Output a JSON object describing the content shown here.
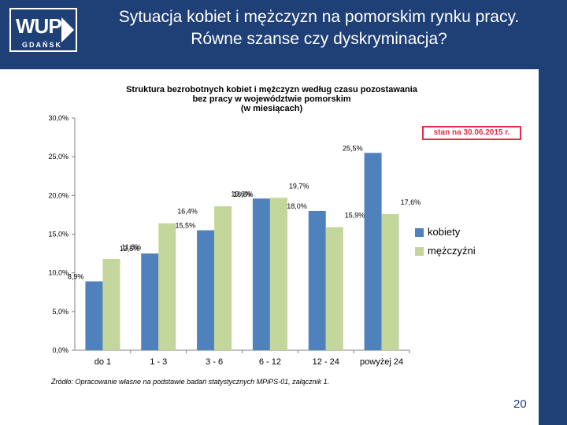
{
  "header": {
    "logo_text": "WUP",
    "logo_sub": "GDAŃSK",
    "title_line1": "Sytuacja kobiet i mężczyzn na pomorskim rynku pracy.",
    "title_line2": "Równe szanse czy dyskryminacja?"
  },
  "stamp": "stan na 30.06.2015 r.",
  "source": "Źródło: Opracowanie własne na podstawie badań statystycznych MPiPS-01, załącznik 1.",
  "page_number": "20",
  "colors": {
    "kobiety": "#4f81bd",
    "mezczyzni": "#c3d69b",
    "header": "#1f3f77"
  },
  "chart_data": {
    "type": "bar",
    "title_lines": [
      "Struktura bezrobotnych kobiet i mężczyzn według czasu pozostawania",
      "bez pracy w województwie pomorskim",
      "(w miesiącach)"
    ],
    "categories": [
      "do 1",
      "1 - 3",
      "3 - 6",
      "6 - 12",
      "12 - 24",
      "powyżej 24"
    ],
    "series": [
      {
        "name": "kobiety",
        "values": [
          8.9,
          12.5,
          15.5,
          19.6,
          18.0,
          25.5
        ],
        "labels": [
          "8,9%",
          "12,5%",
          "15,5%",
          "19,6%",
          "18,0%",
          "25,5%"
        ]
      },
      {
        "name": "mężczyźni",
        "values": [
          11.8,
          16.4,
          18.6,
          19.7,
          15.9,
          17.6
        ],
        "labels": [
          "11,8%",
          "16,4%",
          "18,6%",
          "19,7%",
          "15,9%",
          "17,6%"
        ]
      }
    ],
    "yticks": [
      "0,0%",
      "5,0%",
      "10,0%",
      "15,0%",
      "20,0%",
      "25,0%",
      "30,0%"
    ],
    "ylim": [
      0,
      30
    ],
    "legend": [
      "kobiety",
      "mężczyźni"
    ],
    "legend_position": "right"
  }
}
